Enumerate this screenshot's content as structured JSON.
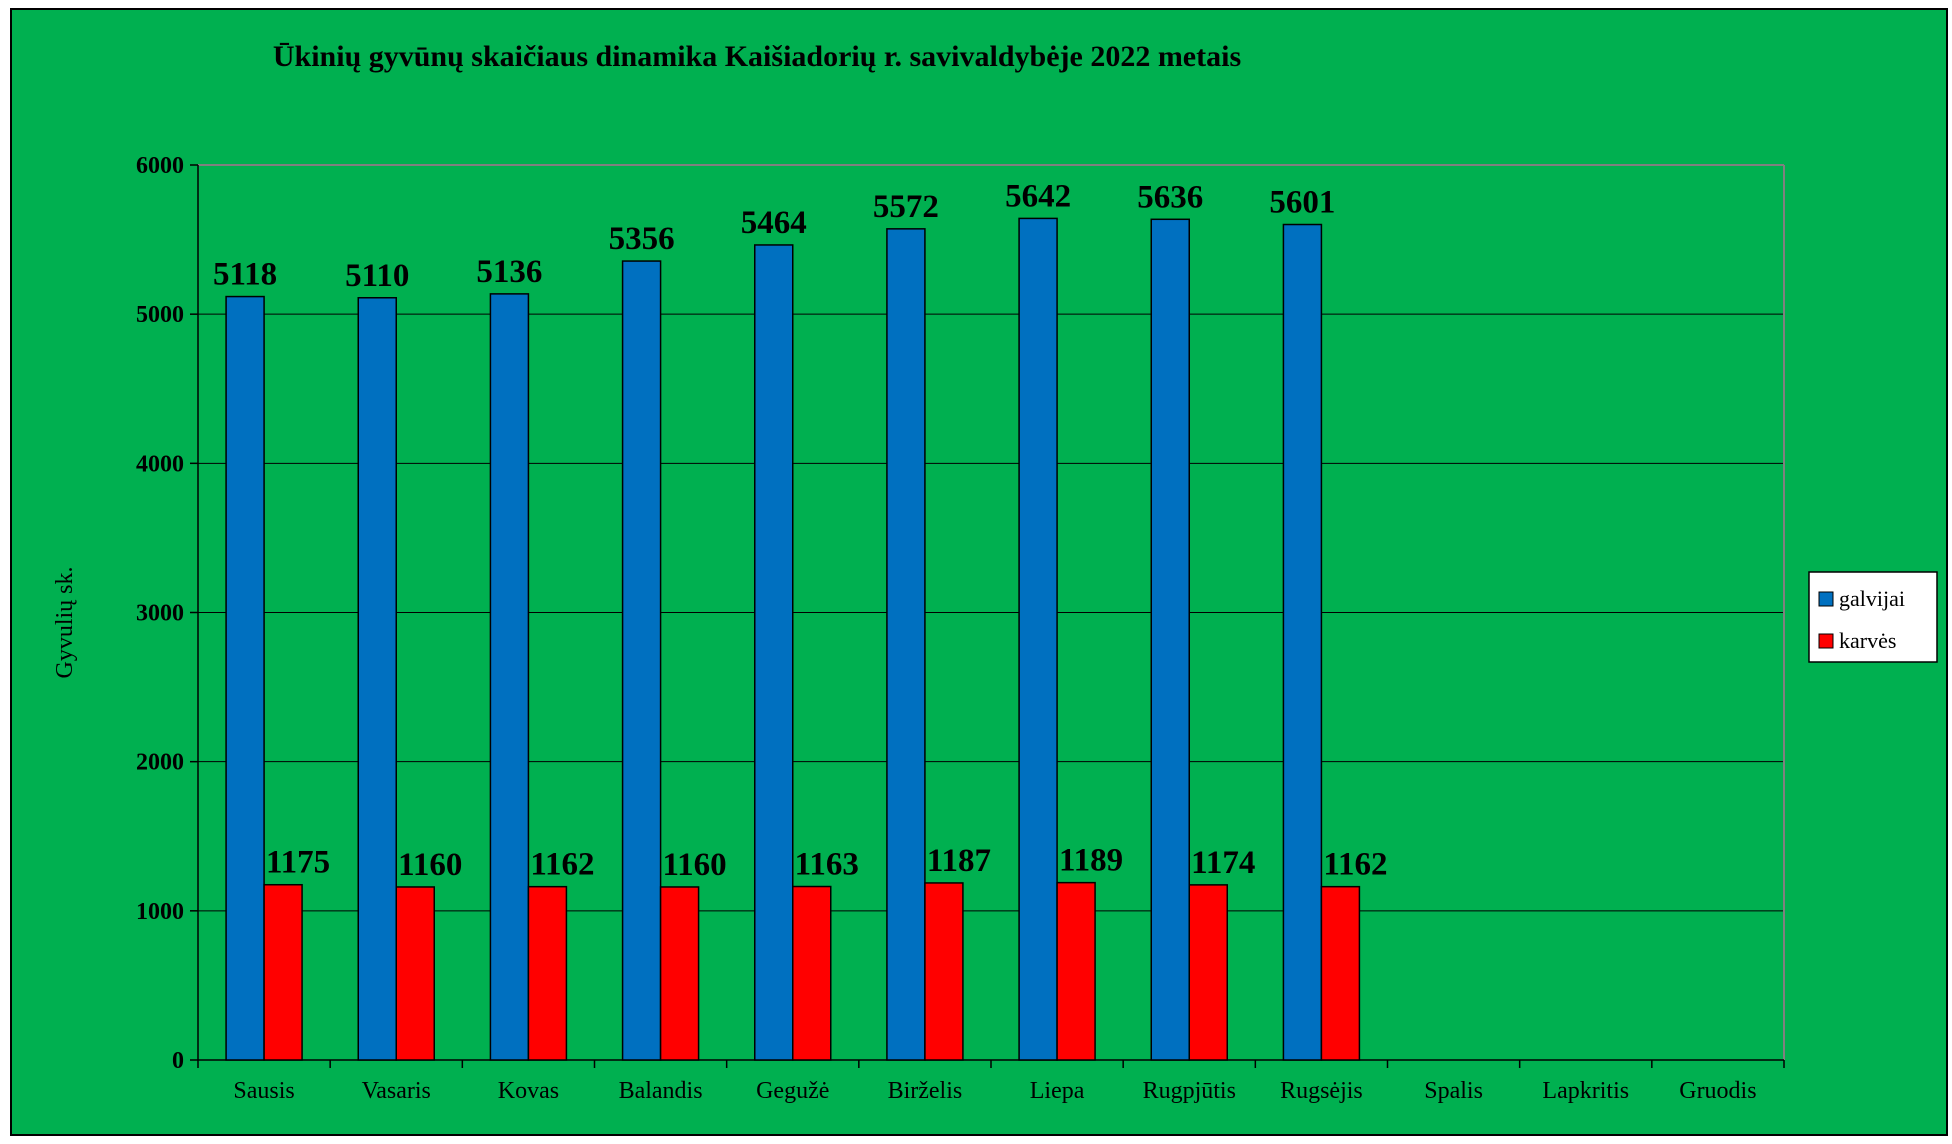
{
  "chart_data": {
    "type": "bar",
    "title": "Ūkinių gyvūnų skaičiaus dinamika  Kaišiadorių  r. savivaldybėje 2022 metais",
    "ylabel": "Gyvulių sk.",
    "xlabel": "",
    "ylim": [
      0,
      6000
    ],
    "yticks": [
      0,
      1000,
      2000,
      3000,
      4000,
      5000,
      6000
    ],
    "grid": true,
    "legend_position": "right",
    "categories": [
      "Sausis",
      "Vasaris",
      "Kovas",
      "Balandis",
      "Gegužė",
      "Birželis",
      "Liepa",
      "Rugpjūtis",
      "Rugsėjis",
      "Spalis",
      "Lapkritis",
      "Gruodis"
    ],
    "series": [
      {
        "name": "galvijai",
        "color": "#0070c0",
        "values": [
          5118,
          5110,
          5136,
          5356,
          5464,
          5572,
          5642,
          5636,
          5601,
          null,
          null,
          null
        ]
      },
      {
        "name": "karvės",
        "color": "#ff0000",
        "values": [
          1175,
          1160,
          1162,
          1160,
          1163,
          1187,
          1189,
          1174,
          1162,
          null,
          null,
          null
        ]
      }
    ]
  },
  "colors": {
    "background": "#00b050",
    "gridline": "#000000",
    "plot_border": "#808080"
  }
}
